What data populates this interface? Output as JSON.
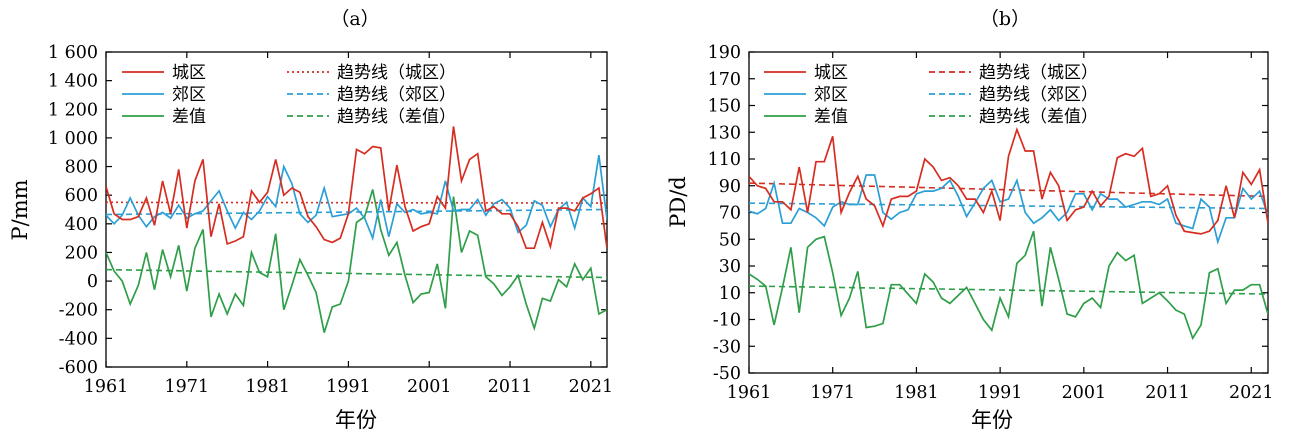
{
  "chart_data": [
    {
      "type": "line",
      "panel_label": "（a）",
      "xlabel": "年份",
      "ylabel": "P/mm",
      "xlim": [
        1961,
        2023
      ],
      "ylim": [
        -600,
        1600
      ],
      "xticks": [
        1961,
        1971,
        1981,
        1991,
        2001,
        2011,
        2021
      ],
      "yticks": [
        -600,
        -400,
        -200,
        0,
        200,
        400,
        600,
        800,
        1000,
        1200,
        1400,
        1600
      ],
      "ytick_labels": [
        "-600",
        "-400",
        "-200",
        "0",
        "200",
        "400",
        "600",
        "800",
        "1 000",
        "1 200",
        "1 400",
        "1 600"
      ],
      "x_start": 1961,
      "legend_position": "top-left",
      "series": [
        {
          "name": "城区",
          "color": "#d62d20",
          "style": "solid",
          "values": [
            660,
            470,
            430,
            430,
            450,
            580,
            390,
            700,
            470,
            780,
            370,
            700,
            850,
            310,
            540,
            260,
            280,
            310,
            630,
            550,
            620,
            850,
            600,
            650,
            620,
            450,
            380,
            290,
            270,
            300,
            470,
            920,
            890,
            940,
            930,
            490,
            810,
            520,
            350,
            380,
            400,
            590,
            510,
            1080,
            700,
            850,
            890,
            490,
            520,
            470,
            470,
            380,
            230,
            230,
            410,
            240,
            510,
            510,
            490,
            580,
            610,
            650,
            230
          ]
        },
        {
          "name": "郊区",
          "color": "#2a9fd6",
          "style": "solid",
          "values": [
            460,
            400,
            460,
            580,
            460,
            380,
            450,
            480,
            440,
            530,
            440,
            470,
            490,
            560,
            630,
            490,
            370,
            480,
            430,
            490,
            590,
            520,
            800,
            680,
            470,
            410,
            460,
            650,
            450,
            460,
            470,
            510,
            440,
            300,
            570,
            310,
            540,
            480,
            500,
            470,
            480,
            470,
            700,
            490,
            500,
            500,
            570,
            460,
            540,
            570,
            510,
            340,
            390,
            560,
            530,
            380,
            500,
            550,
            370,
            580,
            520,
            880,
            430
          ]
        },
        {
          "name": "差值",
          "color": "#2e9e48",
          "style": "solid",
          "values": [
            200,
            70,
            0,
            -160,
            -30,
            200,
            -60,
            220,
            30,
            250,
            -70,
            230,
            360,
            -250,
            -90,
            -230,
            -90,
            -170,
            200,
            60,
            30,
            330,
            -200,
            -30,
            150,
            40,
            -80,
            -360,
            -180,
            -160,
            0,
            410,
            450,
            640,
            360,
            180,
            270,
            40,
            -150,
            -90,
            -80,
            120,
            -190,
            590,
            200,
            350,
            320,
            30,
            -20,
            -100,
            -40,
            40,
            -160,
            -330,
            -120,
            -140,
            10,
            -40,
            120,
            10,
            90,
            -230,
            -200
          ]
        },
        {
          "name": "趋势线（城区）",
          "color": "#d62d20",
          "style": "dotted",
          "values_at_xlim": [
            550,
            545
          ]
        },
        {
          "name": "趋势线（郊区）",
          "color": "#2a9fd6",
          "style": "dashed",
          "values_at_xlim": [
            465,
            500
          ]
        },
        {
          "name": "趋势线（差值）",
          "color": "#2e9e48",
          "style": "dashed",
          "values_at_xlim": [
            80,
            25
          ]
        }
      ]
    },
    {
      "type": "line",
      "panel_label": "（b）",
      "xlabel": "年份",
      "ylabel": "PD/d",
      "xlim": [
        1961,
        2023
      ],
      "ylim": [
        -50,
        190
      ],
      "xticks": [
        1961,
        1971,
        1981,
        1991,
        2001,
        2011,
        2021
      ],
      "yticks": [
        -50,
        -30,
        -10,
        10,
        30,
        50,
        70,
        90,
        110,
        130,
        150,
        170,
        190
      ],
      "ytick_labels": [
        "-50",
        "-30",
        "-10",
        "10",
        "30",
        "50",
        "70",
        "90",
        "110",
        "130",
        "150",
        "170",
        "190"
      ],
      "x_start": 1961,
      "legend_position": "top-left",
      "series": [
        {
          "name": "城区",
          "color": "#d62d20",
          "style": "solid",
          "values": [
            97,
            90,
            88,
            78,
            78,
            72,
            104,
            70,
            108,
            108,
            127,
            70,
            85,
            97,
            80,
            75,
            60,
            80,
            82,
            82,
            86,
            110,
            104,
            94,
            96,
            90,
            80,
            80,
            70,
            86,
            64,
            112,
            132,
            116,
            116,
            80,
            100,
            90,
            64,
            72,
            74,
            86,
            75,
            82,
            111,
            114,
            112,
            118,
            82,
            84,
            90,
            68,
            56,
            55,
            54,
            56,
            64,
            90,
            66,
            100,
            91,
            102,
            62
          ]
        },
        {
          "name": "郊区",
          "color": "#2a9fd6",
          "style": "solid",
          "values": [
            71,
            69,
            73,
            92,
            62,
            62,
            73,
            70,
            66,
            60,
            74,
            78,
            76,
            76,
            98,
            98,
            70,
            65,
            70,
            72,
            84,
            86,
            86,
            88,
            94,
            82,
            67,
            77,
            88,
            94,
            78,
            80,
            94,
            70,
            62,
            66,
            72,
            64,
            70,
            84,
            84,
            72,
            84,
            80,
            80,
            74,
            76,
            78,
            78,
            76,
            80,
            62,
            60,
            58,
            80,
            74,
            48,
            66,
            66,
            88,
            80,
            86,
            68
          ]
        },
        {
          "name": "差值",
          "color": "#2e9e48",
          "style": "solid",
          "values": [
            24,
            20,
            15,
            -14,
            14,
            44,
            -5,
            44,
            50,
            52,
            25,
            -7,
            6,
            26,
            -16,
            -15,
            -13,
            16,
            16,
            9,
            2,
            24,
            18,
            6,
            2,
            8,
            14,
            2,
            -10,
            -18,
            6,
            -8,
            32,
            38,
            56,
            0,
            44,
            20,
            -6,
            -8,
            2,
            6,
            -1,
            30,
            40,
            34,
            38,
            2,
            6,
            10,
            4,
            -3,
            -6,
            -24,
            -14,
            25,
            28,
            2,
            12,
            12,
            16,
            16,
            -6
          ]
        },
        {
          "name": "趋势线（城区）",
          "color": "#d62d20",
          "style": "dashed",
          "values_at_xlim": [
            92,
            82
          ]
        },
        {
          "name": "趋势线（郊区）",
          "color": "#2a9fd6",
          "style": "dashed",
          "values_at_xlim": [
            77,
            73
          ]
        },
        {
          "name": "趋势线（差值）",
          "color": "#2e9e48",
          "style": "dashed",
          "values_at_xlim": [
            15,
            9
          ]
        }
      ]
    }
  ]
}
